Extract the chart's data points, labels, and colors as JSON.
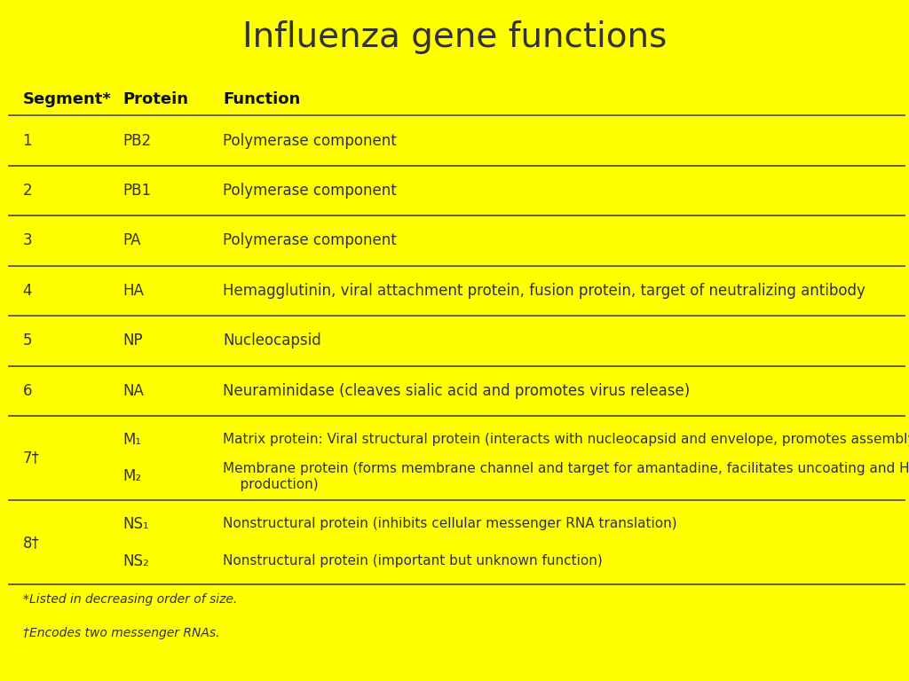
{
  "title": "Influenza gene functions",
  "title_color": "#333333",
  "title_bg_color": "#ffff00",
  "table_bg_color": "#fffff5",
  "header": [
    "Segment*",
    "Protein",
    "Function"
  ],
  "rows": [
    {
      "segment": "1",
      "proteins": [
        "PB2"
      ],
      "functions": [
        "Polymerase component"
      ],
      "double": false
    },
    {
      "segment": "2",
      "proteins": [
        "PB1"
      ],
      "functions": [
        "Polymerase component"
      ],
      "double": false
    },
    {
      "segment": "3",
      "proteins": [
        "PA"
      ],
      "functions": [
        "Polymerase component"
      ],
      "double": false
    },
    {
      "segment": "4",
      "proteins": [
        "HA"
      ],
      "functions": [
        "Hemagglutinin, viral attachment protein, fusion protein, target of neutralizing antibody"
      ],
      "double": false
    },
    {
      "segment": "5",
      "proteins": [
        "NP"
      ],
      "functions": [
        "Nucleocapsid"
      ],
      "double": false
    },
    {
      "segment": "6",
      "proteins": [
        "NA"
      ],
      "functions": [
        "Neuraminidase (cleaves sialic acid and promotes virus release)"
      ],
      "double": false
    },
    {
      "segment": "7†",
      "proteins": [
        "M₁",
        "M₂"
      ],
      "functions": [
        "Matrix protein: Viral structural protein (interacts with nucleocapsid and envelope, promotes assembly)",
        "Membrane protein (forms membrane channel and target for amantadine, facilitates uncoating and HA\n    production)"
      ],
      "double": true
    },
    {
      "segment": "8†",
      "proteins": [
        "NS₁",
        "NS₂"
      ],
      "functions": [
        "Nonstructural protein (inhibits cellular messenger RNA translation)",
        "Nonstructural protein (important but unknown function)"
      ],
      "double": true
    }
  ],
  "footnotes": [
    "*Listed in decreasing order of size.",
    "†Encodes two messenger RNAs."
  ],
  "line_color": "#555555",
  "text_color": "#333333",
  "header_color": "#111111",
  "title_fontsize": 28,
  "header_fontsize": 13,
  "body_fontsize": 12,
  "footnote_fontsize": 10
}
